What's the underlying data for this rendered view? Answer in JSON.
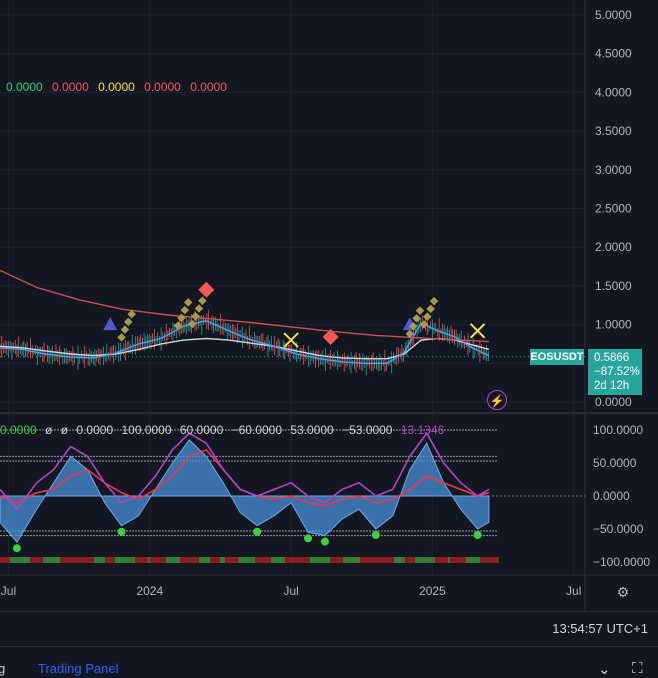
{
  "legend_top": [
    {
      "text": "0.0000",
      "color": "#26d07c"
    },
    {
      "text": "0.0000",
      "color": "#f05a5a"
    },
    {
      "text": "0.0000",
      "color": "#f5e24a"
    },
    {
      "text": "0.0000",
      "color": "#f05a5a"
    },
    {
      "text": "0.0000",
      "color": "#f05a5a"
    }
  ],
  "indicator_legend": [
    {
      "text": "0.0000",
      "color": "#2ecc40"
    },
    {
      "text": "ø",
      "color": "#d1d4dc"
    },
    {
      "text": "ø",
      "color": "#d1d4dc"
    },
    {
      "text": "0.0000",
      "color": "#d1d4dc"
    },
    {
      "text": "100.0000",
      "color": "#d1d4dc"
    },
    {
      "text": "60.0000",
      "color": "#d1d4dc"
    },
    {
      "text": "−60.0000",
      "color": "#d1d4dc"
    },
    {
      "text": "53.0000",
      "color": "#d1d4dc"
    },
    {
      "text": "−53.0000",
      "color": "#d1d4dc"
    },
    {
      "text": "13.1346",
      "color": "#b344c7"
    }
  ],
  "symbol": {
    "name": "EOSUSDT",
    "price": "0.5866",
    "change": "−87.52%",
    "countdown": "2d 12h"
  },
  "clock": "13:54:57 UTC+1",
  "bottom_tabs": {
    "left": "g",
    "trading_panel": "Trading Panel"
  },
  "icons": {
    "lightning": "lightning-icon",
    "gear": "gear-icon",
    "fullscreen": "fullscreen-icon",
    "minimize": "minimize-icon"
  },
  "chart_data": [
    {
      "type": "line",
      "symbol": "EOSUSDT",
      "y_axis_labels": [
        "5.0000",
        "4.5000",
        "4.0000",
        "3.5000",
        "3.0000",
        "2.5000",
        "2.0000",
        "1.5000",
        "1.0000",
        "0.5000",
        "0.0000"
      ],
      "ylim": [
        0,
        5.2
      ],
      "x_axis_labels": [
        "Jul",
        "2024",
        "Jul",
        "2025",
        "Jul"
      ],
      "x_ticks": [
        2023.5,
        2024.0,
        2024.5,
        2025.0,
        2025.5
      ],
      "xlim": [
        2023.47,
        2025.54
      ],
      "series": [
        {
          "color": "#d1d4dc",
          "x": [
            2023.47,
            2023.55,
            2023.63,
            2023.72,
            2023.8,
            2023.88,
            2023.96,
            2024.04,
            2024.12,
            2024.2,
            2024.28,
            2024.36,
            2024.44,
            2024.52,
            2024.6,
            2024.68,
            2024.76,
            2024.84,
            2024.9,
            2024.96,
            2025.02,
            2025.08,
            2025.14,
            2025.2
          ],
          "values": [
            0.72,
            0.7,
            0.66,
            0.62,
            0.6,
            0.62,
            0.68,
            0.75,
            0.8,
            0.82,
            0.8,
            0.76,
            0.72,
            0.66,
            0.6,
            0.57,
            0.56,
            0.56,
            0.62,
            0.8,
            0.82,
            0.8,
            0.74,
            0.68
          ]
        },
        {
          "color": "#42a5f5",
          "x": [
            2023.47,
            2023.55,
            2023.63,
            2023.72,
            2023.8,
            2023.88,
            2023.96,
            2024.04,
            2024.12,
            2024.2,
            2024.28,
            2024.36,
            2024.44,
            2024.52,
            2024.6,
            2024.68,
            2024.76,
            2024.84,
            2024.9,
            2024.96,
            2025.02,
            2025.08,
            2025.14,
            2025.2
          ],
          "values": [
            0.7,
            0.68,
            0.62,
            0.58,
            0.57,
            0.63,
            0.75,
            0.82,
            0.98,
            1.05,
            0.92,
            0.8,
            0.72,
            0.62,
            0.56,
            0.52,
            0.5,
            0.5,
            0.64,
            1.02,
            0.92,
            0.84,
            0.7,
            0.6
          ]
        },
        {
          "color": "#c8524f",
          "x": [
            2023.47,
            2023.6,
            2023.75,
            2023.9,
            2024.05,
            2024.2,
            2024.35,
            2024.5,
            2024.65,
            2024.8,
            2024.95,
            2025.1,
            2025.2
          ],
          "values": [
            1.7,
            1.48,
            1.32,
            1.2,
            1.13,
            1.08,
            1.03,
            0.97,
            0.91,
            0.86,
            0.83,
            0.8,
            0.78
          ]
        }
      ]
    },
    {
      "type": "area",
      "y_axis_labels": [
        "100.0000",
        "50.0000",
        "0.0000",
        "−50.0000",
        "−100.0000"
      ],
      "ylim": [
        -105,
        105
      ],
      "x": [
        2023.47,
        2023.53,
        2023.6,
        2023.66,
        2023.72,
        2023.78,
        2023.84,
        2023.9,
        2023.96,
        2024.02,
        2024.08,
        2024.14,
        2024.2,
        2024.26,
        2024.32,
        2024.38,
        2024.44,
        2024.5,
        2024.56,
        2024.62,
        2024.68,
        2024.74,
        2024.8,
        2024.86,
        2024.92,
        2024.98,
        2025.04,
        2025.1,
        2025.16,
        2025.2
      ],
      "series": [
        {
          "color": "#4a90d9",
          "values": [
            -40,
            -70,
            -20,
            20,
            60,
            40,
            -10,
            -45,
            -30,
            10,
            50,
            85,
            60,
            20,
            -25,
            -45,
            -30,
            -10,
            -55,
            -60,
            -35,
            -20,
            -50,
            -30,
            40,
            80,
            20,
            -20,
            -50,
            -40
          ]
        },
        {
          "color": "#f23645",
          "values": [
            0,
            -10,
            5,
            10,
            30,
            40,
            20,
            5,
            -5,
            10,
            30,
            60,
            70,
            40,
            10,
            0,
            -5,
            0,
            -10,
            -15,
            -5,
            0,
            -10,
            -5,
            10,
            30,
            20,
            10,
            0,
            5
          ]
        },
        {
          "color": "#b344c7",
          "values": [
            10,
            -20,
            20,
            40,
            75,
            60,
            20,
            -10,
            0,
            30,
            70,
            95,
            80,
            40,
            10,
            0,
            10,
            20,
            0,
            -10,
            10,
            20,
            0,
            10,
            60,
            95,
            50,
            20,
            0,
            10
          ]
        }
      ]
    }
  ]
}
